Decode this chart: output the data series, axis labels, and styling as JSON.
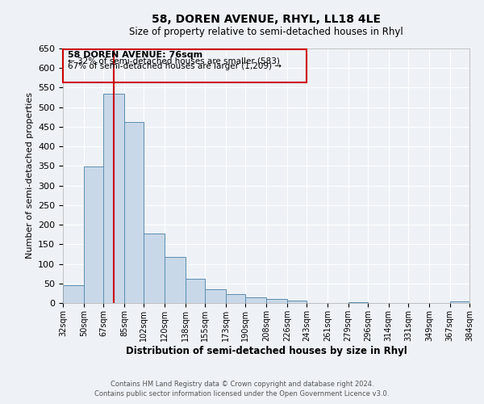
{
  "title": "58, DOREN AVENUE, RHYL, LL18 4LE",
  "subtitle": "Size of property relative to semi-detached houses in Rhyl",
  "xlabel": "Distribution of semi-detached houses by size in Rhyl",
  "ylabel": "Number of semi-detached properties",
  "bin_edges": [
    32,
    50,
    67,
    85,
    102,
    120,
    138,
    155,
    173,
    190,
    208,
    226,
    243,
    261,
    279,
    296,
    314,
    331,
    349,
    367,
    384
  ],
  "bar_heights": [
    46,
    348,
    535,
    463,
    177,
    118,
    61,
    35,
    22,
    15,
    10,
    7,
    0,
    0,
    3,
    0,
    0,
    0,
    0,
    5
  ],
  "bar_color": "#c8d8e8",
  "bar_edge_color": "#5b8db0",
  "property_size": 76,
  "vline_color": "#cc0000",
  "ylim": [
    0,
    650
  ],
  "annotation_title": "58 DOREN AVENUE: 76sqm",
  "annotation_line1": "← 32% of semi-detached houses are smaller (583)",
  "annotation_line2": "67% of semi-detached houses are larger (1,209) →",
  "annotation_box_color": "#cc0000",
  "footer_line1": "Contains HM Land Registry data © Crown copyright and database right 2024.",
  "footer_line2": "Contains public sector information licensed under the Open Government Licence v3.0.",
  "background_color": "#eef2f7",
  "grid_color": "#ffffff"
}
